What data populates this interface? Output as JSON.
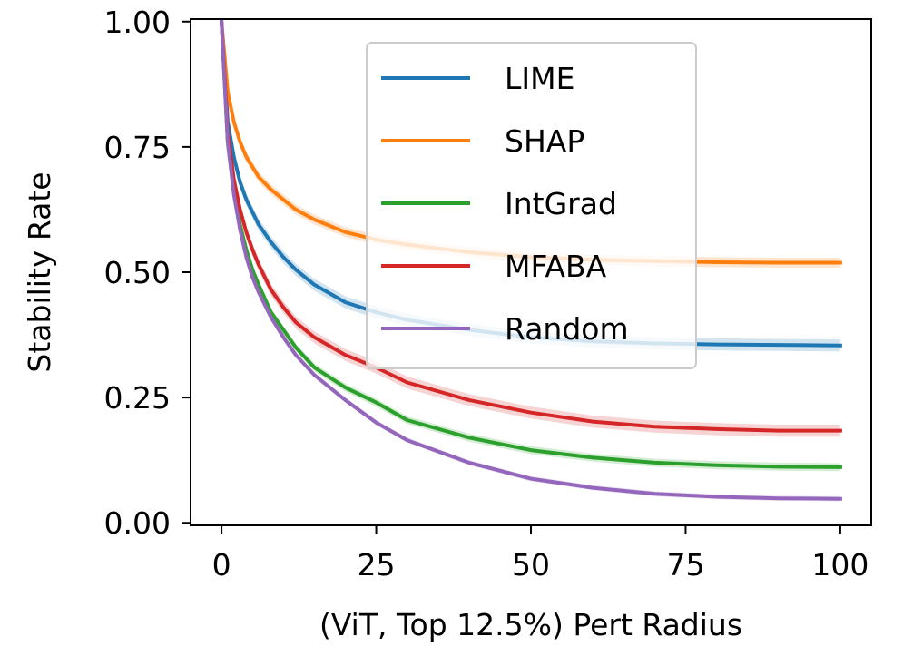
{
  "chart_data": {
    "type": "line",
    "title": "",
    "xlabel": "(ViT, Top 12.5%) Pert Radius",
    "ylabel": "Stability Rate",
    "xlim": [
      -5,
      105
    ],
    "ylim": [
      -0.005,
      1.005
    ],
    "xticks": [
      0,
      25,
      50,
      75,
      100
    ],
    "xtick_labels": [
      "0",
      "25",
      "50",
      "75",
      "100"
    ],
    "yticks": [
      0.0,
      0.25,
      0.5,
      0.75,
      1.0
    ],
    "ytick_labels": [
      "0.00",
      "0.25",
      "0.50",
      "0.75",
      "1.00"
    ],
    "grid": false,
    "legend_position": "top-center",
    "x": [
      0,
      1,
      2,
      3,
      4,
      5,
      6,
      8,
      10,
      12,
      15,
      20,
      25,
      30,
      40,
      50,
      60,
      70,
      80,
      90,
      100
    ],
    "series": [
      {
        "name": "LIME",
        "color": "#1f77b4",
        "band": 0.012,
        "values": [
          1.0,
          0.8,
          0.73,
          0.68,
          0.645,
          0.62,
          0.595,
          0.56,
          0.53,
          0.505,
          0.475,
          0.44,
          0.42,
          0.405,
          0.385,
          0.37,
          0.362,
          0.358,
          0.356,
          0.355,
          0.354
        ]
      },
      {
        "name": "SHAP",
        "color": "#ff7f0e",
        "band": 0.01,
        "values": [
          1.0,
          0.86,
          0.8,
          0.76,
          0.73,
          0.71,
          0.69,
          0.665,
          0.645,
          0.625,
          0.605,
          0.58,
          0.565,
          0.555,
          0.54,
          0.53,
          0.525,
          0.522,
          0.52,
          0.519,
          0.519
        ]
      },
      {
        "name": "IntGrad",
        "color": "#2ca02c",
        "band": 0.008,
        "values": [
          1.0,
          0.76,
          0.66,
          0.595,
          0.545,
          0.505,
          0.475,
          0.42,
          0.385,
          0.35,
          0.31,
          0.27,
          0.24,
          0.205,
          0.17,
          0.145,
          0.13,
          0.12,
          0.115,
          0.112,
          0.111
        ]
      },
      {
        "name": "MFABA",
        "color": "#d62728",
        "band": 0.012,
        "values": [
          1.0,
          0.78,
          0.685,
          0.625,
          0.58,
          0.545,
          0.515,
          0.465,
          0.43,
          0.4,
          0.37,
          0.335,
          0.31,
          0.28,
          0.245,
          0.22,
          0.202,
          0.192,
          0.187,
          0.184,
          0.184
        ]
      },
      {
        "name": "Random",
        "color": "#9467bd",
        "band": 0.005,
        "values": [
          1.0,
          0.76,
          0.655,
          0.585,
          0.53,
          0.49,
          0.46,
          0.41,
          0.37,
          0.335,
          0.295,
          0.245,
          0.2,
          0.165,
          0.12,
          0.088,
          0.07,
          0.058,
          0.052,
          0.049,
          0.048
        ]
      }
    ]
  }
}
